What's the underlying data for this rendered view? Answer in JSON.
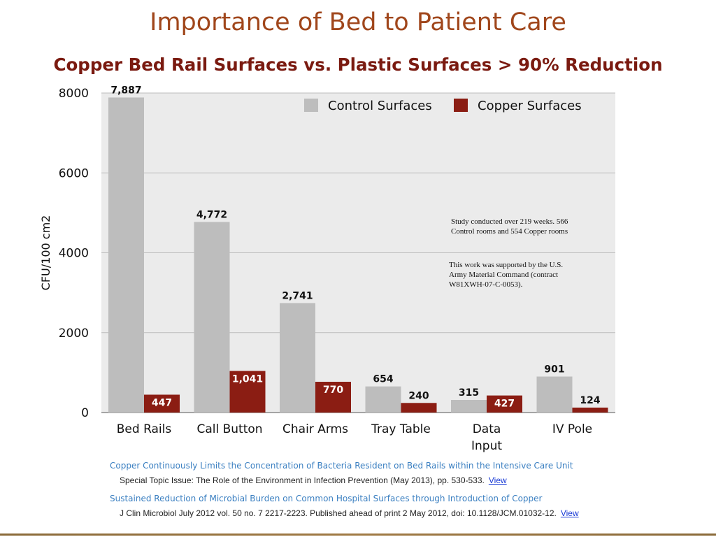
{
  "slide": {
    "title": "Importance of Bed to Patient Care",
    "subtitle": "Copper Bed Rail Surfaces vs. Plastic Surfaces > 90% Reduction"
  },
  "notes": {
    "study": "Study conducted over 219 weeks.  566\nControl rooms and 554 Copper rooms",
    "funding": "This work was supported by the U.S.\nArmy Material Command (contract\nW81XWH-07-C-0053)."
  },
  "references": [
    {
      "title": "Copper Continuously Limits the Concentration of Bacteria Resident on Bed Rails within the Intensive Care Unit",
      "citation": "Special Topic Issue: The Role of the Environment in Infection Prevention (May 2013), pp. 530-533.",
      "link": "View"
    },
    {
      "title": "Sustained Reduction of Microbial Burden on Common Hospital Surfaces through Introduction of Copper",
      "citation": "J Clin Microbiol July 2012 vol. 50 no. 7 2217-2223. Published ahead of print 2 May 2012, doi: 10.1128/JCM.01032-12.",
      "link": "View"
    }
  ],
  "chart_data": {
    "type": "bar",
    "title": "",
    "xlabel": "",
    "ylabel": "CFU/100 cm2",
    "ylim": [
      0,
      8000
    ],
    "yticks": [
      0,
      2000,
      4000,
      6000,
      8000
    ],
    "grid": true,
    "legend_position": "top-right",
    "categories": [
      [
        "Bed Rails"
      ],
      [
        "Call Button"
      ],
      [
        "Chair Arms"
      ],
      [
        "Tray Table"
      ],
      [
        "Data",
        "Input"
      ],
      [
        "IV  Pole"
      ]
    ],
    "series": [
      {
        "name": "Control Surfaces",
        "color": "#bdbdbd",
        "values": [
          7887,
          4772,
          2741,
          654,
          315,
          901
        ],
        "labels": [
          "7,887",
          "4,772",
          "2,741",
          "654",
          "315",
          "901"
        ]
      },
      {
        "name": "Copper Surfaces",
        "color": "#8b1d13",
        "values": [
          447,
          1041,
          770,
          240,
          427,
          124
        ],
        "labels": [
          "447",
          "1,041",
          "770",
          "240",
          "427",
          "124"
        ]
      }
    ]
  }
}
